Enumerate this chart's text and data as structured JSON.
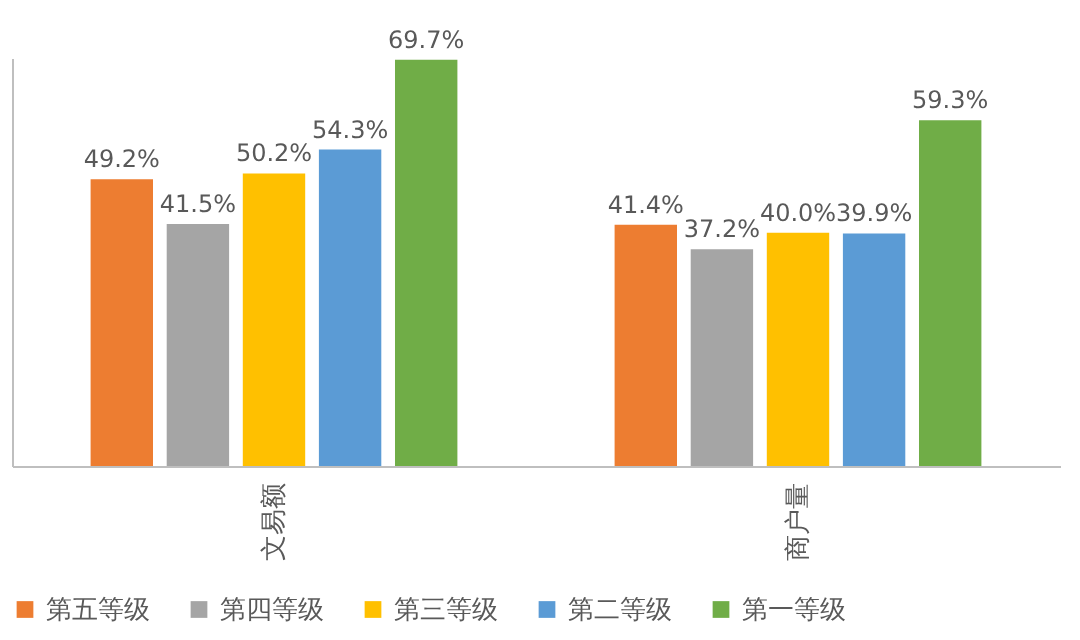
{
  "chart_data": {
    "type": "bar",
    "categories": [
      "文易额",
      "商户量"
    ],
    "series": [
      {
        "name": "第五等级",
        "color": "#ed7d31",
        "values": [
          49.2,
          41.4
        ],
        "value_labels": [
          "49.2%",
          "41.4%"
        ]
      },
      {
        "name": "第四等级",
        "color": "#a5a5a5",
        "values": [
          41.5,
          37.2
        ],
        "value_labels": [
          "41.5%",
          "37.2%"
        ]
      },
      {
        "name": "第三等级",
        "color": "#ffc000",
        "values": [
          50.2,
          40.0
        ],
        "value_labels": [
          "50.2%",
          "40.0%"
        ]
      },
      {
        "name": "第二等级",
        "color": "#5b9bd5",
        "values": [
          54.3,
          39.9
        ],
        "value_labels": [
          "54.3%",
          "39.9%"
        ]
      },
      {
        "name": "第一等级",
        "color": "#70ad47",
        "values": [
          69.7,
          59.3
        ],
        "value_labels": [
          "69.7%",
          "59.3%"
        ]
      }
    ],
    "legend": "bottom",
    "tick_labels": "x",
    "grid": false
  }
}
